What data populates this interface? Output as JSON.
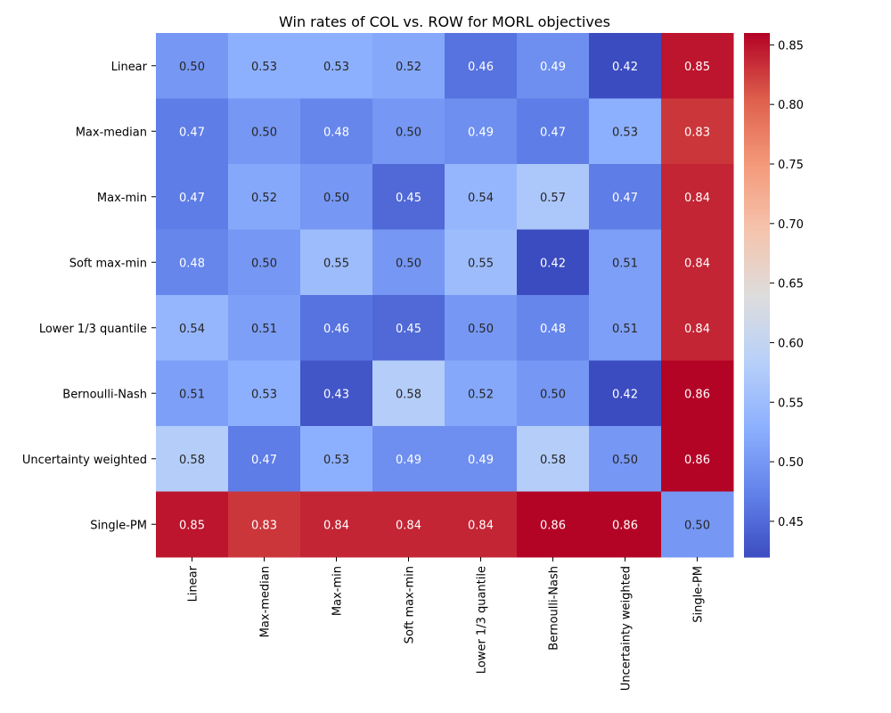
{
  "chart_data": {
    "type": "heatmap",
    "title": "Win rates of COL vs. ROW for MORL objectives",
    "xlabel": "",
    "ylabel": "",
    "rows": [
      "Linear",
      "Max-median",
      "Max-min",
      "Soft max-min",
      "Lower 1/3 quantile",
      "Bernoulli-Nash",
      "Uncertainty weighted",
      "Single-PM"
    ],
    "cols": [
      "Linear",
      "Max-median",
      "Max-min",
      "Soft max-min",
      "Lower 1/3 quantile",
      "Bernoulli-Nash",
      "Uncertainty weighted",
      "Single-PM"
    ],
    "values": [
      [
        0.5,
        0.53,
        0.53,
        0.52,
        0.46,
        0.49,
        0.42,
        0.85
      ],
      [
        0.47,
        0.5,
        0.48,
        0.5,
        0.49,
        0.47,
        0.53,
        0.83
      ],
      [
        0.47,
        0.52,
        0.5,
        0.45,
        0.54,
        0.57,
        0.47,
        0.84
      ],
      [
        0.48,
        0.5,
        0.55,
        0.5,
        0.55,
        0.42,
        0.51,
        0.84
      ],
      [
        0.54,
        0.51,
        0.46,
        0.45,
        0.5,
        0.48,
        0.51,
        0.84
      ],
      [
        0.51,
        0.53,
        0.43,
        0.58,
        0.52,
        0.5,
        0.42,
        0.86
      ],
      [
        0.58,
        0.47,
        0.53,
        0.49,
        0.49,
        0.58,
        0.5,
        0.86
      ],
      [
        0.85,
        0.83,
        0.84,
        0.84,
        0.84,
        0.86,
        0.86,
        0.5
      ]
    ],
    "colormap": "coolwarm",
    "vmin": 0.42,
    "vmax": 0.86,
    "colorbar_ticks": [
      0.45,
      0.5,
      0.55,
      0.6,
      0.65,
      0.7,
      0.75,
      0.8,
      0.85
    ],
    "colorbar_tick_labels": [
      "0.45",
      "0.50",
      "0.55",
      "0.60",
      "0.65",
      "0.70",
      "0.75",
      "0.80",
      "0.85"
    ]
  }
}
